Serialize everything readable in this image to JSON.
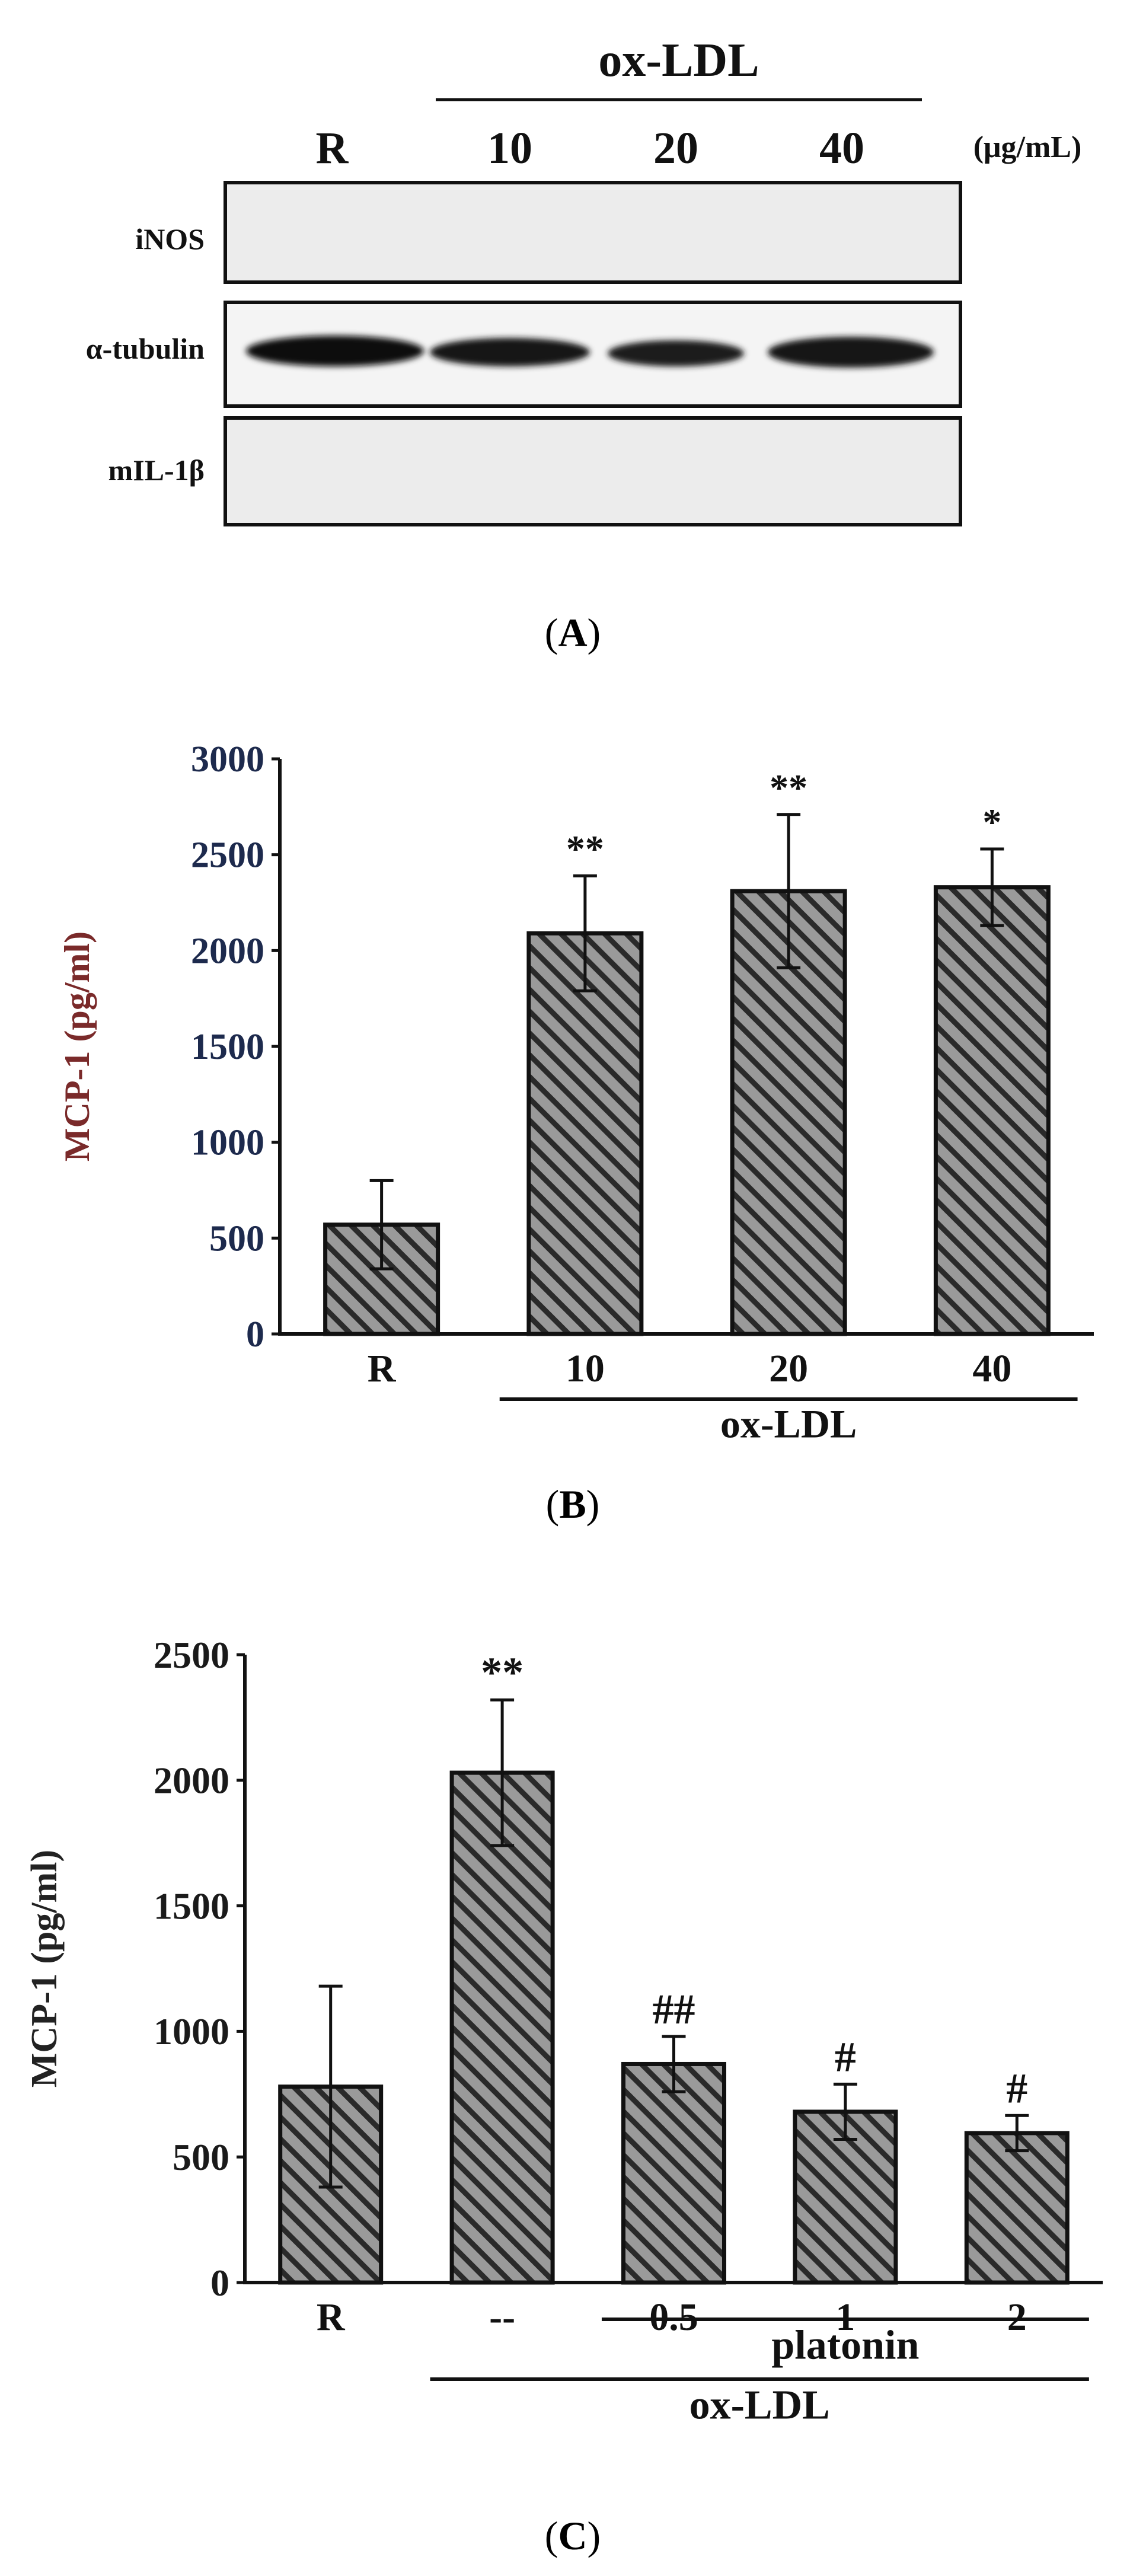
{
  "colors": {
    "axis": "#111111",
    "ylabel_b": "#7a2a2a",
    "tick_b": "#1d2a4d",
    "bar_fill": "#9a9a9a",
    "hatch": "#2a2a2a",
    "band": "#0f0f0f",
    "blot_bg": "#ececec"
  },
  "panelA": {
    "group_label": "ox-LDL",
    "lanes": [
      "R",
      "10",
      "20",
      "40"
    ],
    "unit": "(μg/mL)",
    "blots": [
      {
        "label": "iNOS",
        "bands": false
      },
      {
        "label": "α-tubulin",
        "bands": true
      },
      {
        "label": "mIL-1β",
        "bands": false
      }
    ],
    "caption_open": "(",
    "caption_letter": "A",
    "caption_close": ")"
  },
  "chart_data": [
    {
      "type": "bar",
      "panel": "B",
      "ylabel": "MCP-1 (pg/ml)",
      "categories": [
        "R",
        "10",
        "20",
        "40"
      ],
      "values": [
        570,
        2090,
        2310,
        2330
      ],
      "errors": [
        230,
        300,
        400,
        200
      ],
      "significance": [
        "",
        "**",
        "**",
        "*"
      ],
      "ylim": [
        0,
        3000
      ],
      "yticks": [
        "0",
        "500",
        "1000",
        "1500",
        "2000",
        "2500",
        "3000"
      ],
      "group_bars": [
        {
          "label": "ox-LDL",
          "from": 1,
          "to": 3
        }
      ],
      "caption_open": "(",
      "caption_letter": "B",
      "caption_close": ")"
    },
    {
      "type": "bar",
      "panel": "C",
      "ylabel": "MCP-1 (pg/ml)",
      "categories": [
        "R",
        "--",
        "0.5",
        "1",
        "2"
      ],
      "values": [
        780,
        2030,
        870,
        680,
        595
      ],
      "errors": [
        400,
        290,
        110,
        110,
        70
      ],
      "significance": [
        "",
        "**",
        "##",
        "#",
        "#"
      ],
      "ylim": [
        0,
        2500
      ],
      "yticks": [
        "0",
        "500",
        "1000",
        "1500",
        "2000",
        "2500"
      ],
      "group_bars": [
        {
          "label": "platonin",
          "from": 2,
          "to": 4
        },
        {
          "label": "ox-LDL",
          "from": 1,
          "to": 4
        }
      ],
      "caption_open": "(",
      "caption_letter": "C",
      "caption_close": ")"
    }
  ]
}
